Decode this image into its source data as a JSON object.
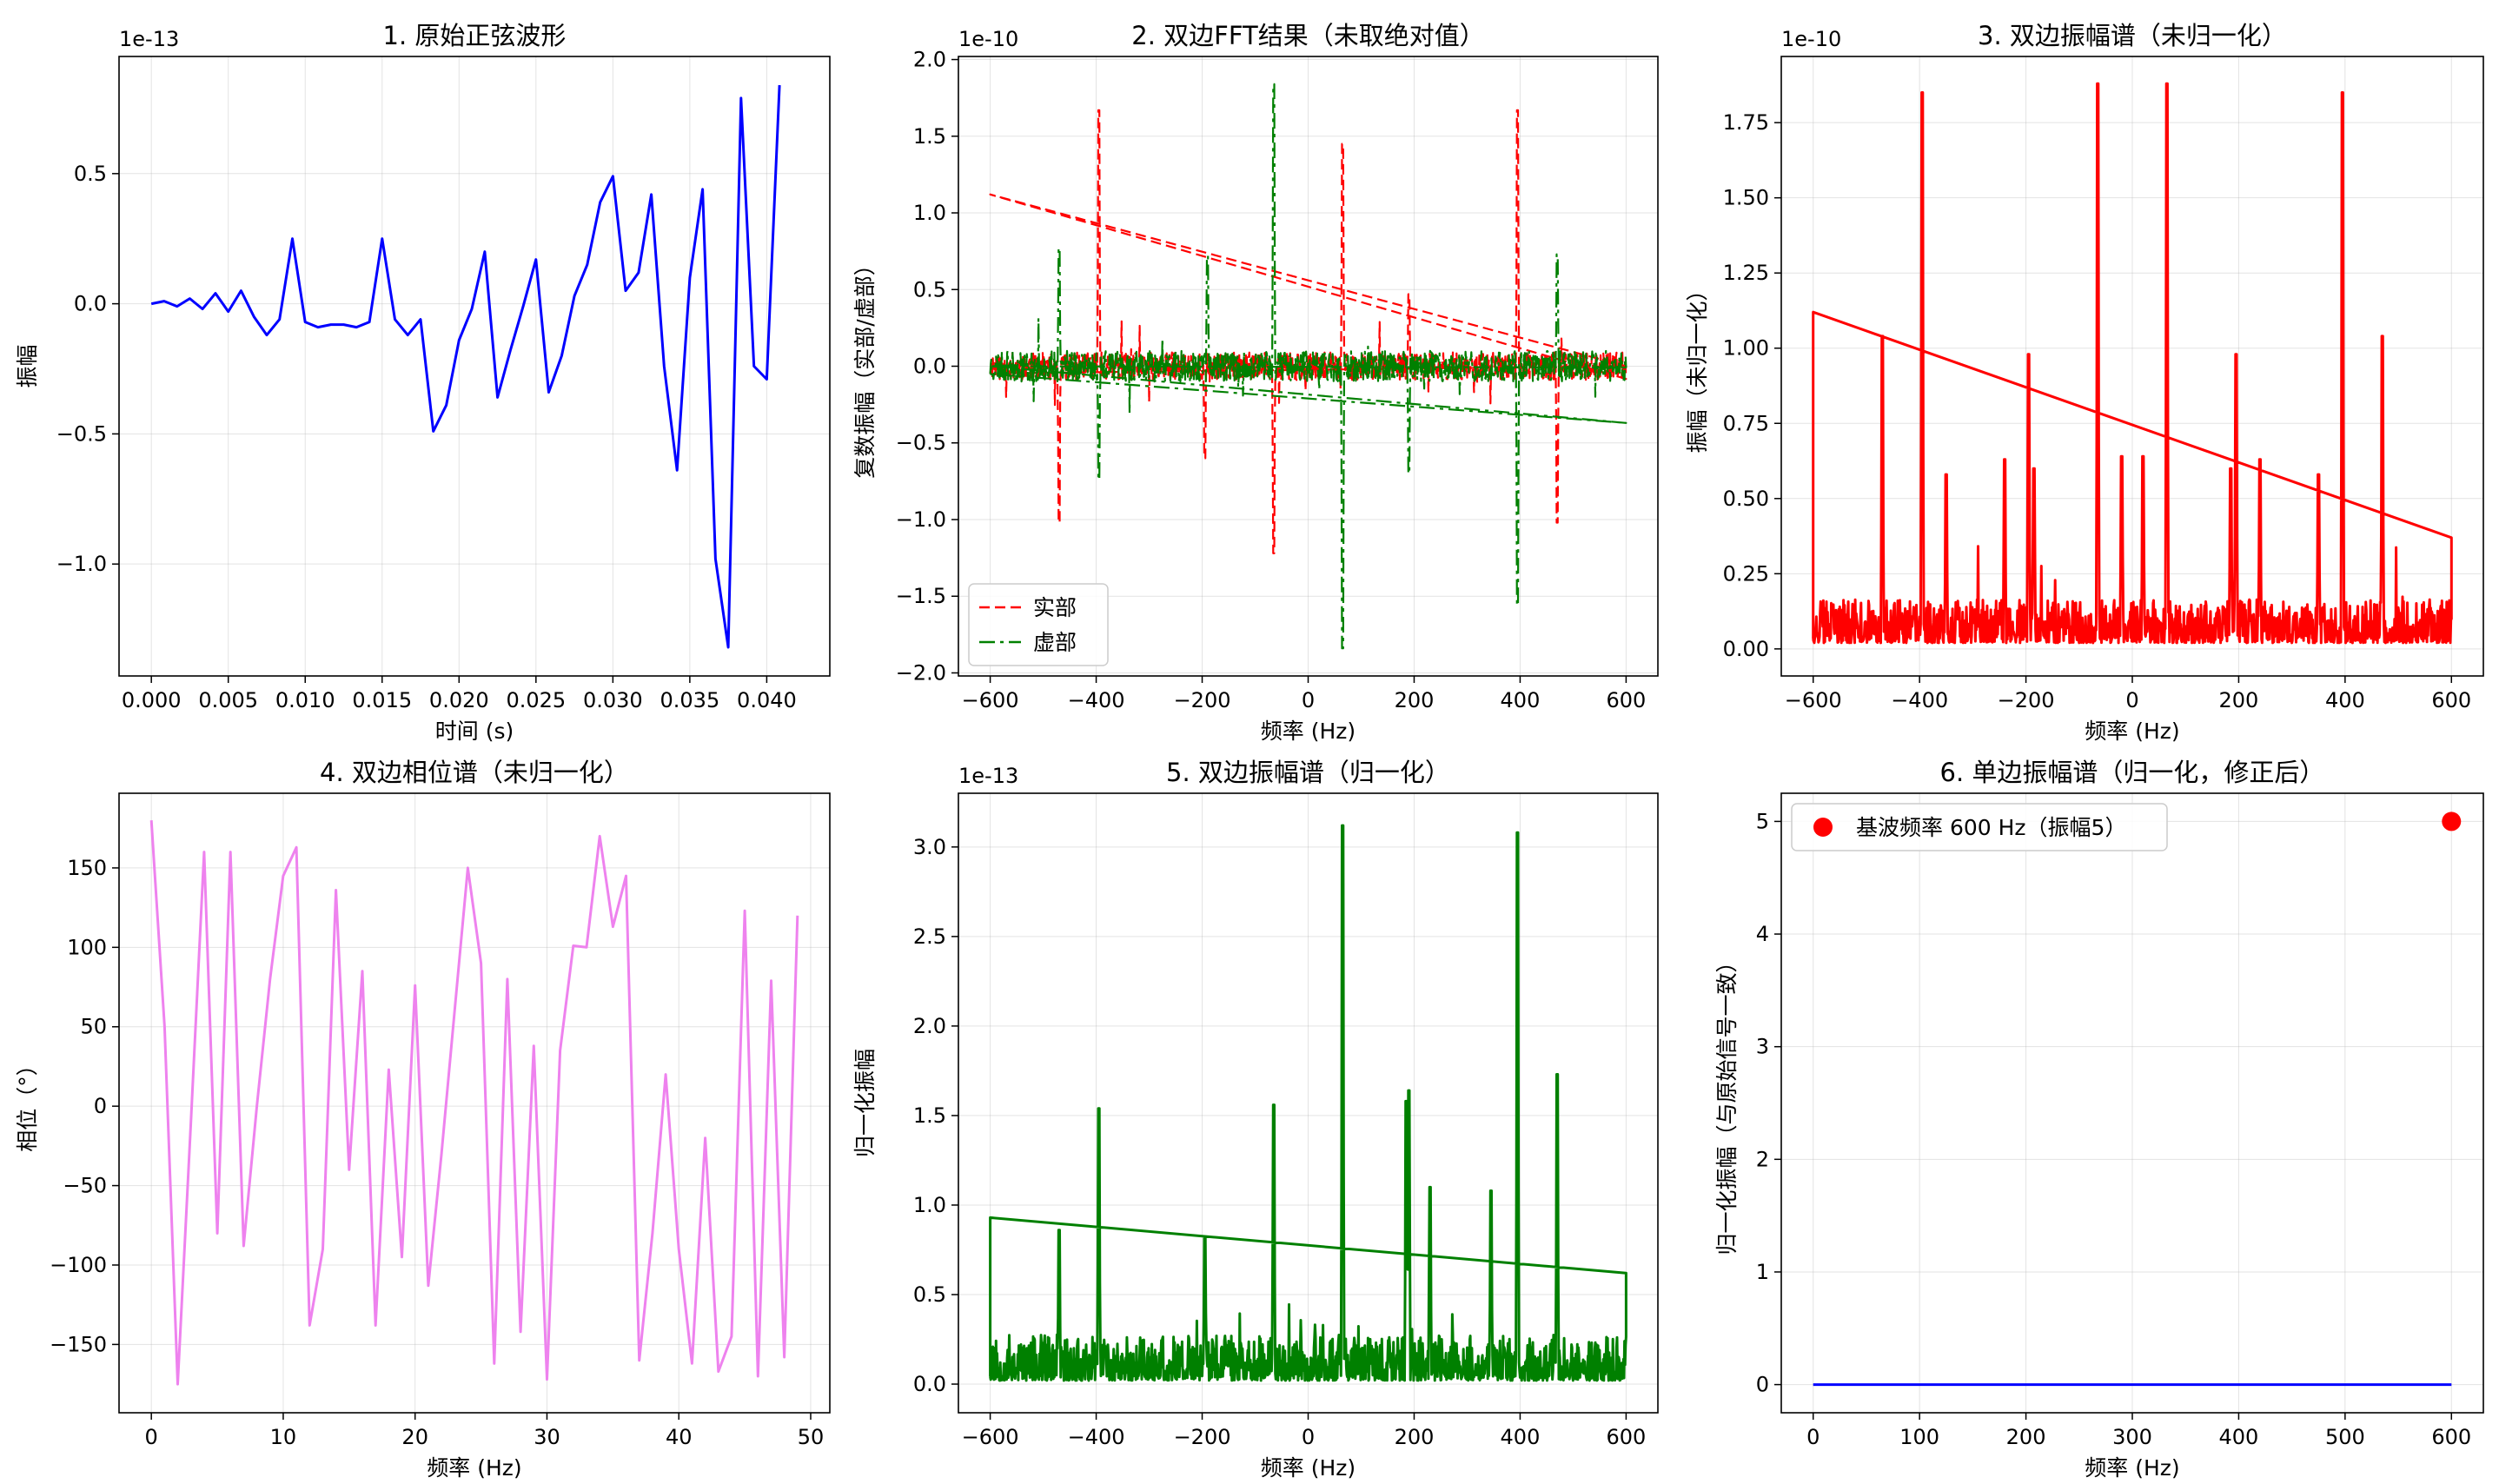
{
  "chart_data": [
    {
      "type": "line",
      "title": "1. 原始正弦波形",
      "xlabel": "时间 (s)",
      "ylabel": "振幅",
      "offset_text": "1e-13",
      "xlim": [
        -0.0021,
        0.0441
      ],
      "ylim": [
        -1.43,
        0.95
      ],
      "xticks": [
        0.0,
        0.005,
        0.01,
        0.015,
        0.02,
        0.025,
        0.03,
        0.035,
        0.04
      ],
      "xtick_labels": [
        "0.000",
        "0.005",
        "0.010",
        "0.015",
        "0.020",
        "0.025",
        "0.030",
        "0.035",
        "0.040"
      ],
      "yticks": [
        -1.0,
        -0.5,
        0.0,
        0.5
      ],
      "ytick_labels": [
        "−1.0",
        "−0.5",
        "0.0",
        "0.5"
      ],
      "grid": true,
      "series": [
        {
          "color": "#0000ff",
          "x": [
            0.0,
            0.00083,
            0.00167,
            0.0025,
            0.00333,
            0.00417,
            0.005,
            0.00583,
            0.00667,
            0.0075,
            0.00833,
            0.00917,
            0.01,
            0.01083,
            0.01167,
            0.0125,
            0.01333,
            0.01417,
            0.015,
            0.01583,
            0.01667,
            0.0175,
            0.01833,
            0.01917,
            0.02,
            0.02083,
            0.02167,
            0.0225,
            0.02333,
            0.02417,
            0.025,
            0.02583,
            0.02667,
            0.0275,
            0.02833,
            0.02917,
            0.03,
            0.03083,
            0.03167,
            0.0325,
            0.03333,
            0.03417,
            0.035,
            0.03583,
            0.03667,
            0.0375,
            0.03833,
            0.03917,
            0.04,
            0.04083
          ],
          "y": [
            0.0,
            0.01,
            -0.01,
            0.02,
            -0.02,
            0.04,
            -0.03,
            0.05,
            -0.05,
            -0.12,
            -0.06,
            0.25,
            -0.07,
            -0.09,
            -0.08,
            -0.08,
            -0.09,
            -0.07,
            0.25,
            -0.06,
            -0.12,
            -0.06,
            -0.49,
            -0.39,
            -0.14,
            -0.02,
            0.2,
            -0.36,
            -0.18,
            -0.01,
            0.17,
            -0.34,
            -0.2,
            0.03,
            0.15,
            0.39,
            0.49,
            0.05,
            0.12,
            0.42,
            -0.24,
            -0.64,
            0.1,
            0.44,
            -0.98,
            -1.32,
            0.79,
            -0.24,
            -0.29,
            0.84
          ]
        }
      ]
    },
    {
      "type": "line",
      "title": "2. 双边FFT结果（未取绝对值）",
      "xlabel": "频率 (Hz)",
      "ylabel": "复数振幅（实部/虚部）",
      "offset_text": "1e-10",
      "xlim": [
        -660,
        660
      ],
      "ylim": [
        -2.02,
        2.02
      ],
      "xticks": [
        -600,
        -400,
        -200,
        0,
        200,
        400,
        600
      ],
      "xtick_labels": [
        "−600",
        "−400",
        "−200",
        "0",
        "200",
        "400",
        "600"
      ],
      "yticks": [
        -2.0,
        -1.5,
        -1.0,
        -0.5,
        0.0,
        0.5,
        1.0,
        1.5,
        2.0
      ],
      "ytick_labels": [
        "−2.0",
        "−1.5",
        "−1.0",
        "−0.5",
        "0.0",
        "0.5",
        "1.0",
        "1.5",
        "2.0"
      ],
      "grid": true,
      "legend": "lower-left",
      "series": [
        {
          "name": "实部",
          "color": "#ff0000",
          "style": "dashed",
          "noise": 0.09,
          "seed": 11,
          "trend": {
            "x": [
              -600,
              600
            ],
            "y": [
              1.12,
              0.0
            ]
          },
          "spikes": [
            {
              "x": -470,
              "y": -1.02
            },
            {
              "x": -395,
              "y": 1.67
            },
            {
              "x": -195,
              "y": -0.6
            },
            {
              "x": -65,
              "y": -1.22
            },
            {
              "x": 65,
              "y": 1.45
            },
            {
              "x": 190,
              "y": 0.47
            },
            {
              "x": 395,
              "y": 1.67
            },
            {
              "x": 470,
              "y": -1.02
            }
          ]
        },
        {
          "name": "虚部",
          "color": "#008000",
          "style": "dashdot",
          "noise": 0.1,
          "seed": 23,
          "trend": {
            "x": [
              -600,
              600
            ],
            "y": [
              0.0,
              -0.37
            ]
          },
          "spikes": [
            {
              "x": -470,
              "y": 0.77
            },
            {
              "x": -395,
              "y": -0.74
            },
            {
              "x": -190,
              "y": 0.72
            },
            {
              "x": -65,
              "y": 1.84
            },
            {
              "x": 65,
              "y": -1.84
            },
            {
              "x": 190,
              "y": -0.7
            },
            {
              "x": 395,
              "y": -1.56
            },
            {
              "x": 470,
              "y": 0.73
            }
          ]
        }
      ]
    },
    {
      "type": "line",
      "title": "3. 双边振幅谱（未归一化）",
      "xlabel": "频率 (Hz)",
      "ylabel": "振幅（未归一化）",
      "offset_text": "1e-10",
      "xlim": [
        -660,
        660
      ],
      "ylim": [
        -0.09,
        1.97
      ],
      "xticks": [
        -600,
        -400,
        -200,
        0,
        200,
        400,
        600
      ],
      "xtick_labels": [
        "−600",
        "−400",
        "−200",
        "0",
        "200",
        "400",
        "600"
      ],
      "yticks": [
        0.0,
        0.25,
        0.5,
        0.75,
        1.0,
        1.25,
        1.5,
        1.75
      ],
      "ytick_labels": [
        "0.00",
        "0.25",
        "0.50",
        "0.75",
        "1.00",
        "1.25",
        "1.50",
        "1.75"
      ],
      "grid": true,
      "series": [
        {
          "color": "#ff0000",
          "style": "solid",
          "noise": 0.09,
          "floor": 0.02,
          "seed": 37,
          "trend": {
            "x": [
              600,
              -600
            ],
            "y": [
              0.37,
              1.12
            ]
          },
          "spikes": [
            {
              "x": -470,
              "y": 1.04
            },
            {
              "x": -395,
              "y": 1.85
            },
            {
              "x": -350,
              "y": 0.58
            },
            {
              "x": -240,
              "y": 0.63
            },
            {
              "x": -195,
              "y": 0.98
            },
            {
              "x": -185,
              "y": 0.6
            },
            {
              "x": -65,
              "y": 1.88
            },
            {
              "x": -20,
              "y": 0.64
            },
            {
              "x": 20,
              "y": 0.64
            },
            {
              "x": 65,
              "y": 1.88
            },
            {
              "x": 185,
              "y": 0.6
            },
            {
              "x": 195,
              "y": 0.98
            },
            {
              "x": 240,
              "y": 0.63
            },
            {
              "x": 350,
              "y": 0.58
            },
            {
              "x": 395,
              "y": 1.85
            },
            {
              "x": 470,
              "y": 1.04
            }
          ]
        }
      ]
    },
    {
      "type": "line",
      "title": "4. 双边相位谱（未归一化）",
      "xlabel": "频率 (Hz)",
      "ylabel": "相位（°）",
      "xlim": [
        -2.45,
        51.45
      ],
      "ylim": [
        -193,
        197
      ],
      "xticks": [
        0,
        10,
        20,
        30,
        40,
        50
      ],
      "xtick_labels": [
        "0",
        "10",
        "20",
        "30",
        "40",
        "50"
      ],
      "yticks": [
        -150,
        -100,
        -50,
        0,
        50,
        100,
        150
      ],
      "ytick_labels": [
        "−150",
        "−100",
        "−50",
        "0",
        "50",
        "100",
        "150"
      ],
      "grid": true,
      "series": [
        {
          "color": "#ee82ee",
          "x": [
            0,
            1,
            2,
            3,
            4,
            5,
            6,
            7,
            8,
            9,
            10,
            11,
            12,
            13,
            14,
            15,
            16,
            17,
            18,
            19,
            20,
            21,
            22,
            23,
            24,
            25,
            26,
            27,
            28,
            29,
            30,
            31,
            32,
            33,
            34,
            35,
            36,
            37,
            38,
            39,
            40,
            41,
            42,
            43,
            44,
            45,
            46,
            47,
            48,
            49
          ],
          "y": [
            180,
            50,
            -175,
            -10,
            160,
            -80,
            160,
            -88,
            0,
            80,
            145,
            163,
            -138,
            -90,
            136,
            -40,
            85,
            -138,
            23,
            -95,
            76,
            -113,
            -30,
            60,
            150,
            90,
            -162,
            80,
            -142,
            38,
            -172,
            35,
            101,
            100,
            170,
            113,
            145,
            -160,
            -80,
            20,
            -90,
            -162,
            -20,
            -167,
            -145,
            123,
            -170,
            79,
            -158,
            120
          ]
        }
      ]
    },
    {
      "type": "line",
      "title": "5. 双边振幅谱（归一化）",
      "xlabel": "频率 (Hz)",
      "ylabel": "归一化振幅",
      "offset_text": "1e-13",
      "xlim": [
        -660,
        660
      ],
      "ylim": [
        -0.16,
        3.3
      ],
      "xticks": [
        -600,
        -400,
        -200,
        0,
        200,
        400,
        600
      ],
      "xtick_labels": [
        "−600",
        "−400",
        "−200",
        "0",
        "200",
        "400",
        "600"
      ],
      "yticks": [
        0.0,
        0.5,
        1.0,
        1.5,
        2.0,
        2.5,
        3.0
      ],
      "ytick_labels": [
        "0.0",
        "0.5",
        "1.0",
        "1.5",
        "2.0",
        "2.5",
        "3.0"
      ],
      "grid": true,
      "series": [
        {
          "color": "#008000",
          "style": "solid",
          "noise": 0.16,
          "floor": 0.02,
          "seed": 53,
          "trend": {
            "x": [
              600,
              -600
            ],
            "y": [
              0.62,
              0.93
            ]
          },
          "spikes": [
            {
              "x": -470,
              "y": 0.86
            },
            {
              "x": -395,
              "y": 1.54
            },
            {
              "x": -195,
              "y": 0.82
            },
            {
              "x": -65,
              "y": 1.56
            },
            {
              "x": 65,
              "y": 3.12
            },
            {
              "x": 185,
              "y": 1.58
            },
            {
              "x": 190,
              "y": 1.64
            },
            {
              "x": 230,
              "y": 1.1
            },
            {
              "x": 345,
              "y": 1.08
            },
            {
              "x": 395,
              "y": 3.08
            },
            {
              "x": 470,
              "y": 1.73
            }
          ]
        }
      ]
    },
    {
      "type": "line",
      "title": "6. 单边振幅谱（归一化，修正后）",
      "xlabel": "频率 (Hz)",
      "ylabel": "归一化振幅（与原始信号一致）",
      "xlim": [
        -30,
        630
      ],
      "ylim": [
        -0.25,
        5.25
      ],
      "xticks": [
        0,
        100,
        200,
        300,
        400,
        500,
        600
      ],
      "xtick_labels": [
        "0",
        "100",
        "200",
        "300",
        "400",
        "500",
        "600"
      ],
      "yticks": [
        0,
        1,
        2,
        3,
        4,
        5
      ],
      "ytick_labels": [
        "0",
        "1",
        "2",
        "3",
        "4",
        "5"
      ],
      "grid": true,
      "legend": "upper-left",
      "series": [
        {
          "color": "#0000ff",
          "x": [
            0,
            600
          ],
          "y": [
            0,
            0
          ]
        },
        {
          "name": "基波频率 600 Hz（振幅5）",
          "type": "scatter",
          "color": "#ff0000",
          "x": [
            600
          ],
          "y": [
            5
          ]
        }
      ]
    }
  ]
}
